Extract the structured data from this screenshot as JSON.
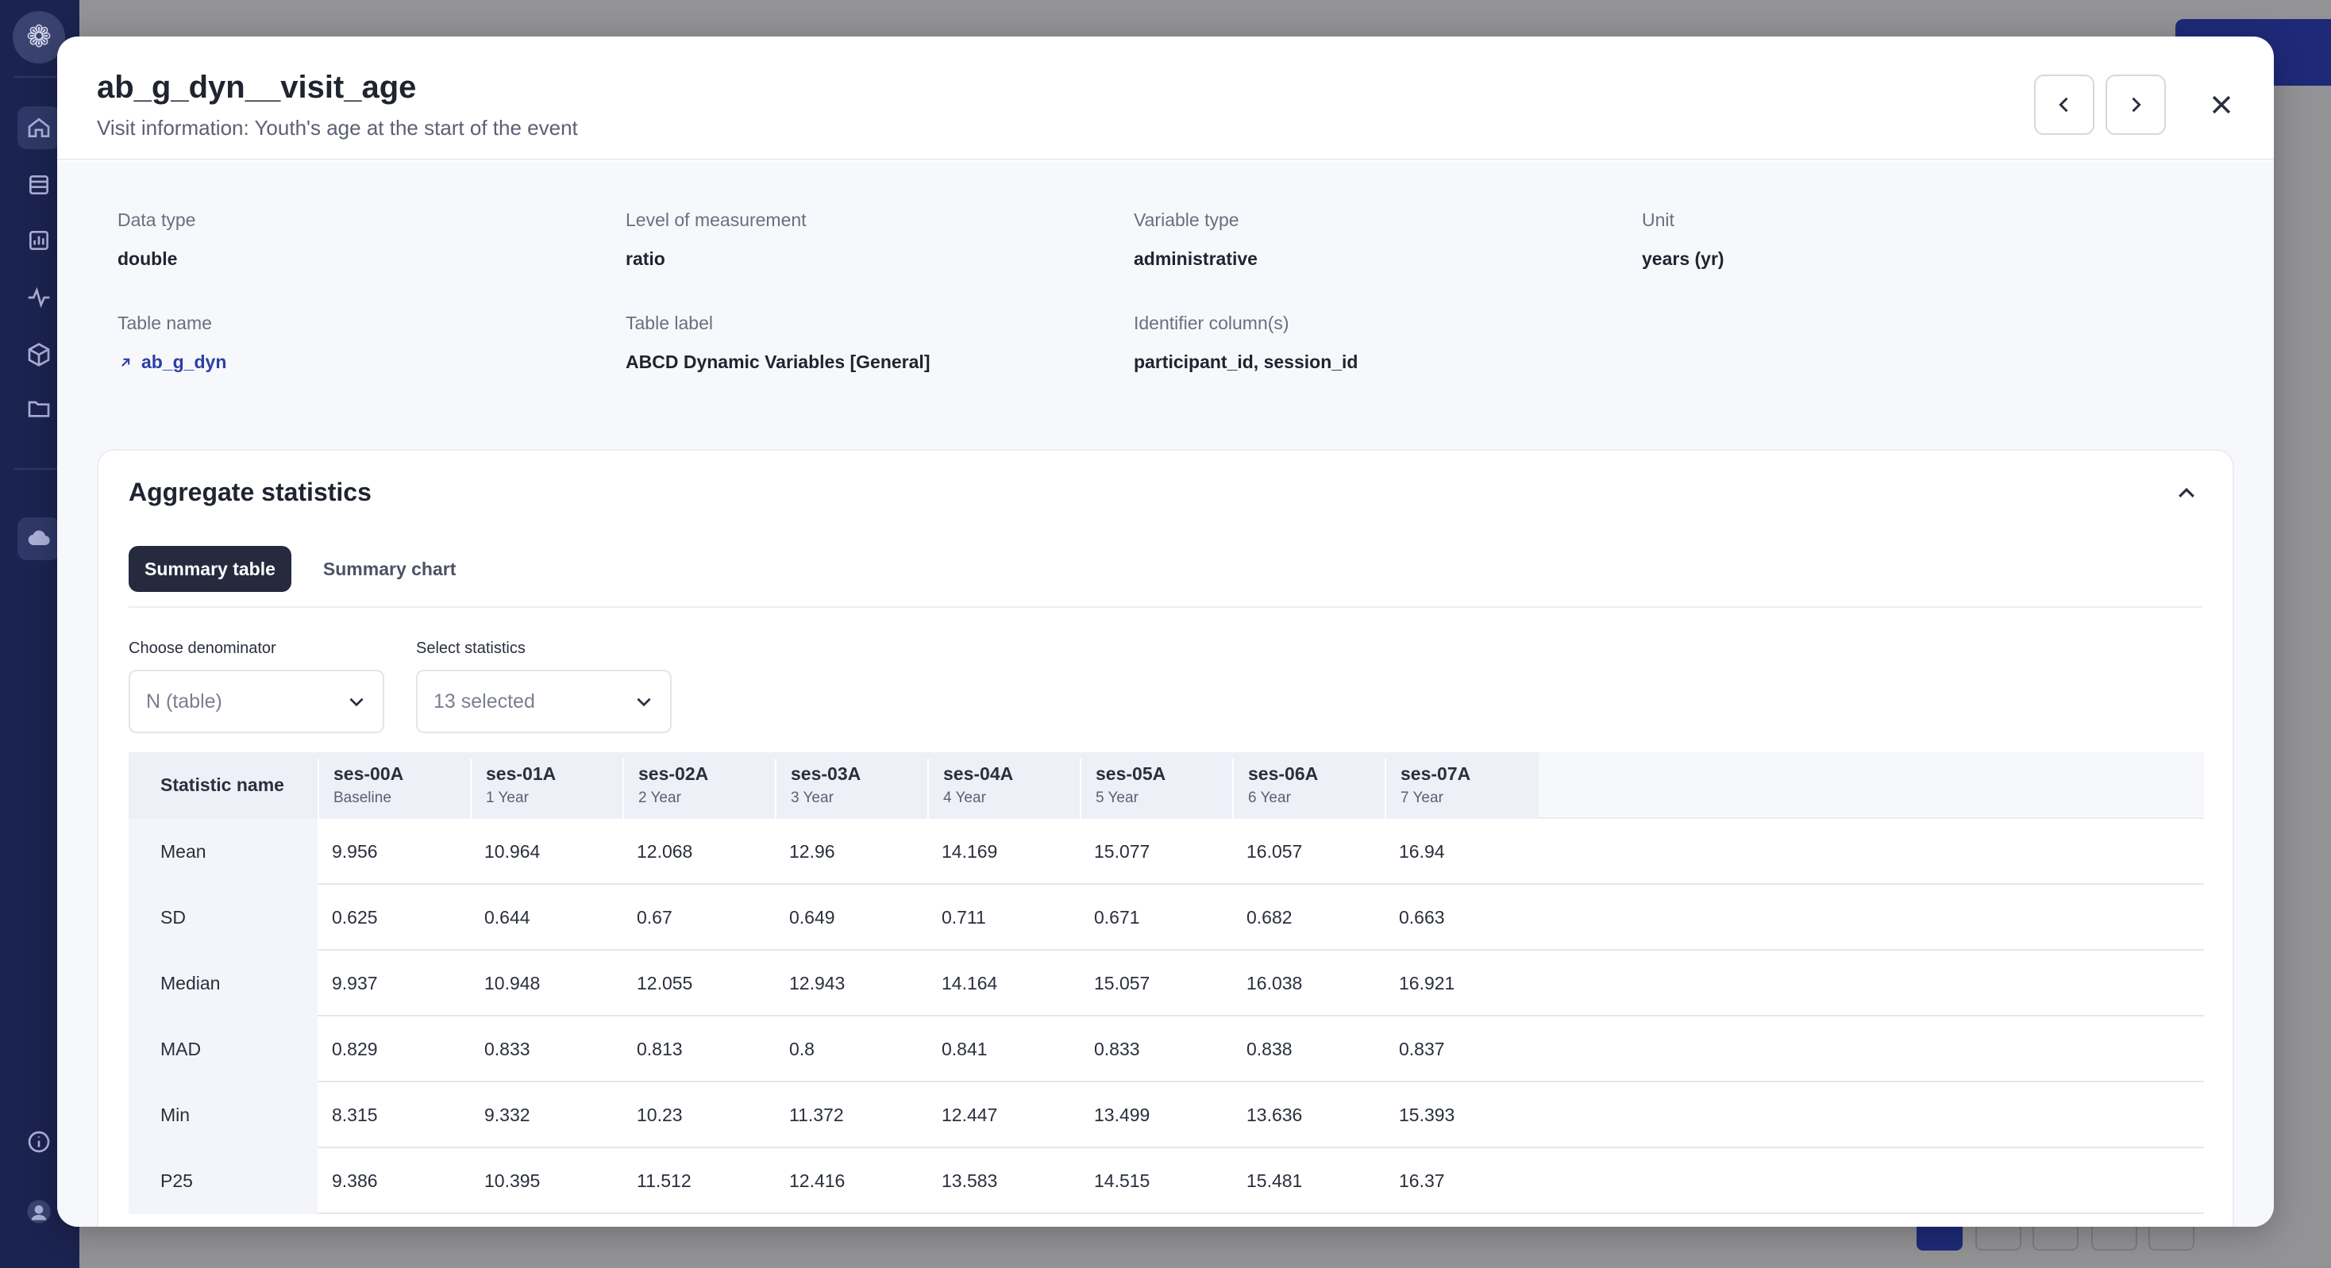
{
  "modal": {
    "title": "ab_g_dyn__visit_age",
    "subtitle": "Visit information: Youth's age at the start of the event"
  },
  "metadata": {
    "data_type": {
      "label": "Data type",
      "value": "double"
    },
    "level_of_measurement": {
      "label": "Level of measurement",
      "value": "ratio"
    },
    "variable_type": {
      "label": "Variable type",
      "value": "administrative"
    },
    "unit": {
      "label": "Unit",
      "value": "years (yr)"
    },
    "table_name": {
      "label": "Table name",
      "value": "ab_g_dyn"
    },
    "table_label": {
      "label": "Table label",
      "value": "ABCD Dynamic Variables [General]"
    },
    "identifier_columns": {
      "label": "Identifier column(s)",
      "value": "participant_id, session_id"
    }
  },
  "aggregate": {
    "title": "Aggregate statistics",
    "tabs": [
      {
        "label": "Summary table",
        "active": true
      },
      {
        "label": "Summary chart",
        "active": false
      }
    ],
    "denominator": {
      "label": "Choose denominator",
      "value": "N (table)"
    },
    "statistics": {
      "label": "Select statistics",
      "value": "13 selected"
    }
  },
  "table": {
    "name_header": "Statistic name",
    "columns": [
      {
        "ses": "ses-00A",
        "year": "Baseline"
      },
      {
        "ses": "ses-01A",
        "year": "1 Year"
      },
      {
        "ses": "ses-02A",
        "year": "2 Year"
      },
      {
        "ses": "ses-03A",
        "year": "3 Year"
      },
      {
        "ses": "ses-04A",
        "year": "4 Year"
      },
      {
        "ses": "ses-05A",
        "year": "5 Year"
      },
      {
        "ses": "ses-06A",
        "year": "6 Year"
      },
      {
        "ses": "ses-07A",
        "year": "7 Year"
      }
    ],
    "rows": [
      {
        "name": "Mean",
        "values": [
          "9.956",
          "10.964",
          "12.068",
          "12.96",
          "14.169",
          "15.077",
          "16.057",
          "16.94"
        ]
      },
      {
        "name": "SD",
        "values": [
          "0.625",
          "0.644",
          "0.67",
          "0.649",
          "0.711",
          "0.671",
          "0.682",
          "0.663"
        ]
      },
      {
        "name": "Median",
        "values": [
          "9.937",
          "10.948",
          "12.055",
          "12.943",
          "14.164",
          "15.057",
          "16.038",
          "16.921"
        ]
      },
      {
        "name": "MAD",
        "values": [
          "0.829",
          "0.833",
          "0.813",
          "0.8",
          "0.841",
          "0.833",
          "0.838",
          "0.837"
        ]
      },
      {
        "name": "Min",
        "values": [
          "8.315",
          "9.332",
          "10.23",
          "11.372",
          "12.447",
          "13.499",
          "13.636",
          "15.393"
        ]
      },
      {
        "name": "P25",
        "values": [
          "9.386",
          "10.395",
          "11.512",
          "12.416",
          "13.583",
          "14.515",
          "15.481",
          "16.37"
        ]
      }
    ]
  }
}
